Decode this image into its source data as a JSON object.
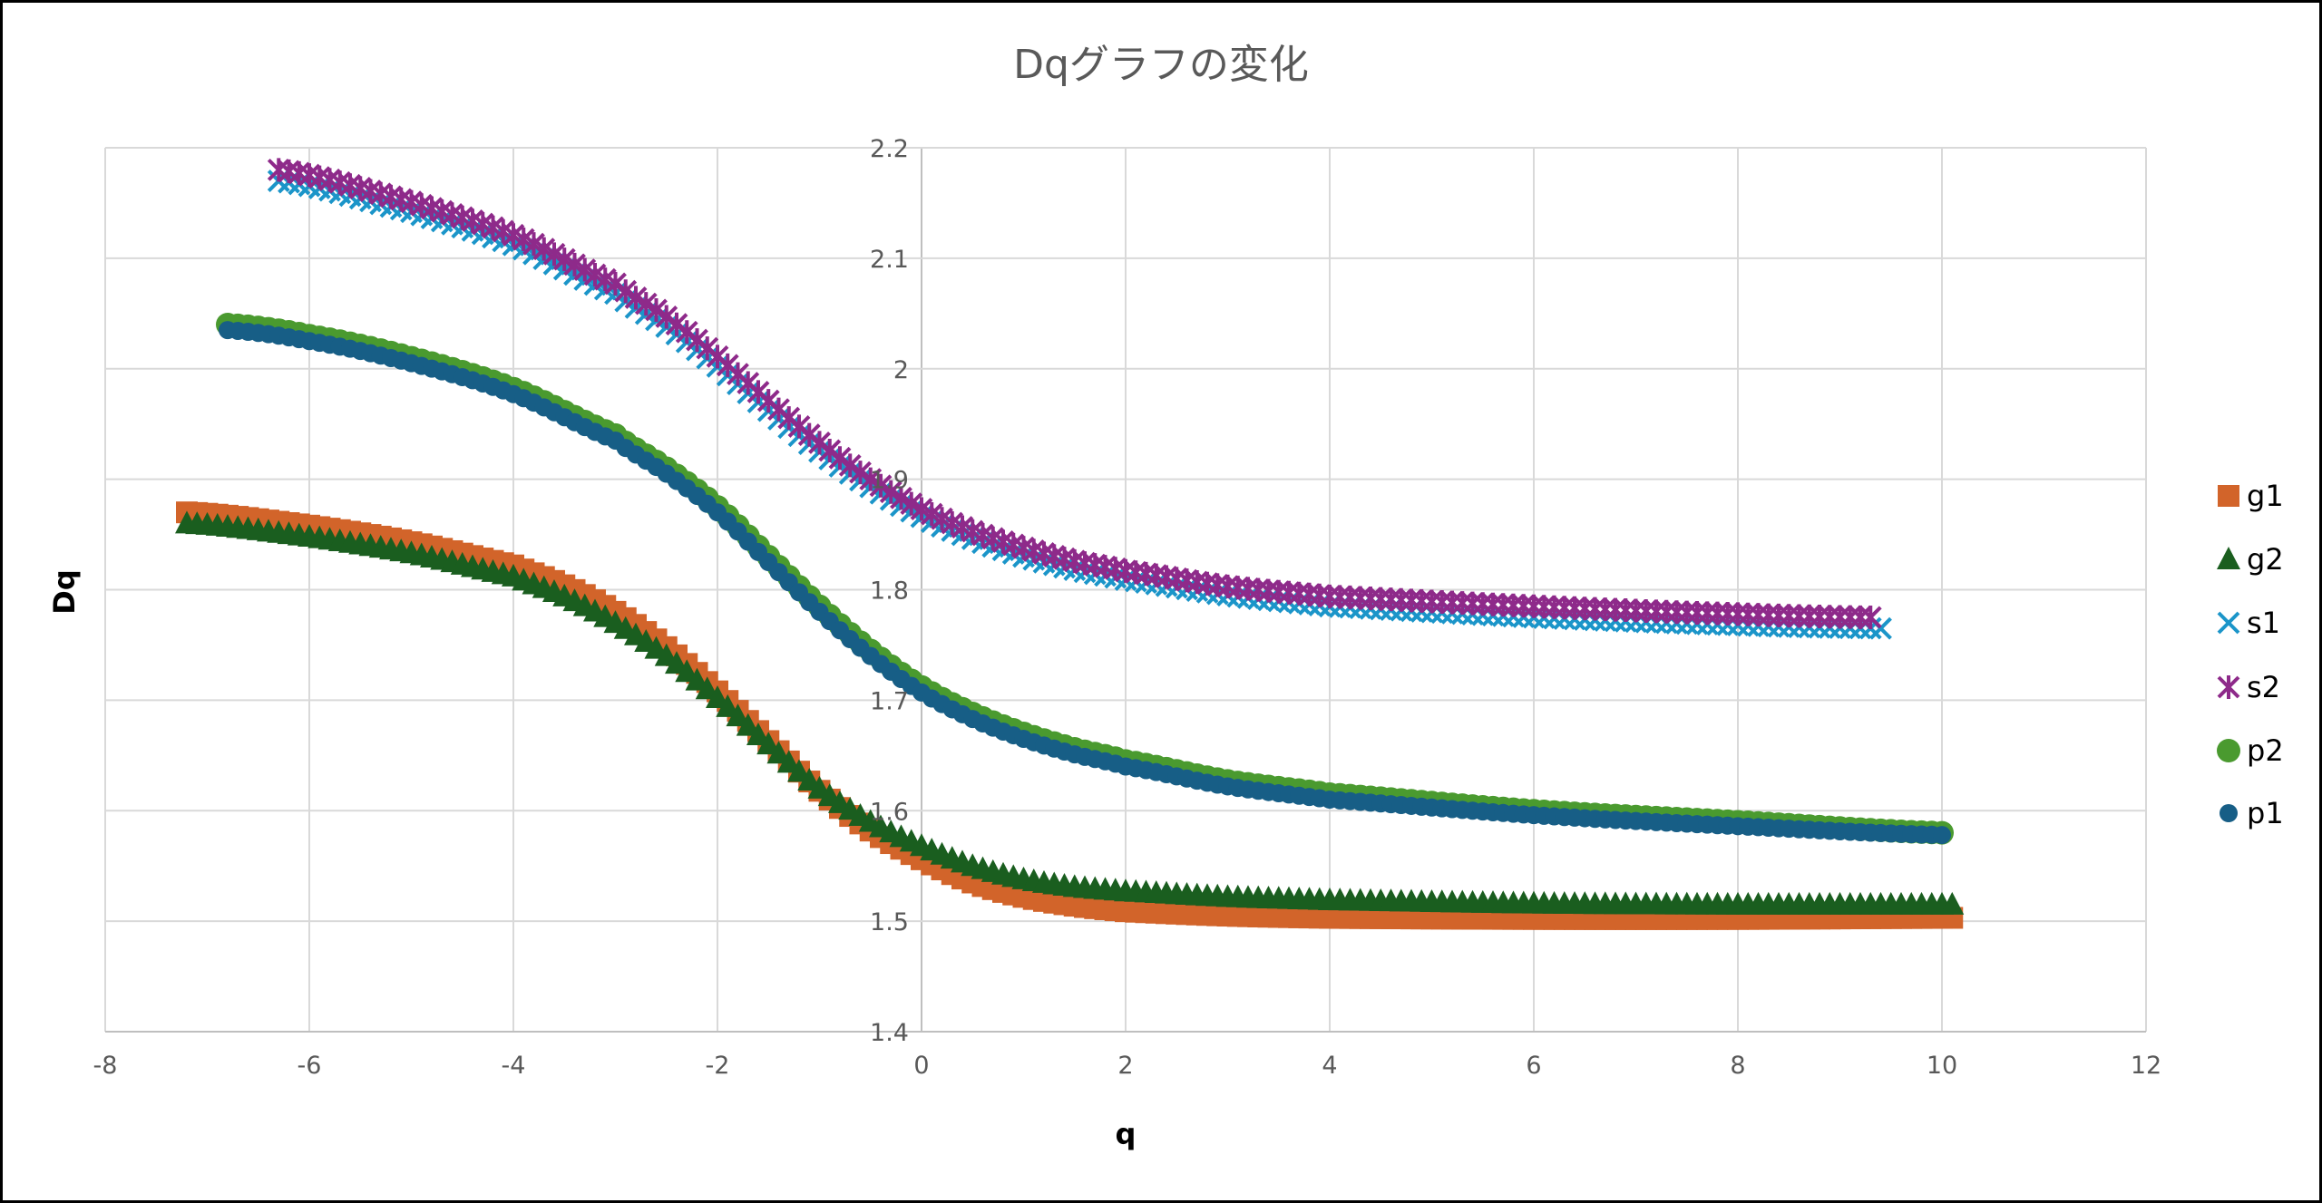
{
  "chart_data": {
    "type": "scatter",
    "title": "Dqグラフの変化",
    "xlabel": "q",
    "ylabel": "Dq",
    "xlim": [
      -8,
      12
    ],
    "ylim": [
      1.4,
      2.2
    ],
    "xticks": [
      "-8",
      "-6",
      "-4",
      "-2",
      "0",
      "2",
      "4",
      "6",
      "8",
      "10",
      "12"
    ],
    "yticks": [
      "1.4",
      "1.5",
      "1.6",
      "1.7",
      "1.8",
      "1.9",
      "2",
      "2.1",
      "2.2"
    ],
    "grid": true,
    "legend_position": "right",
    "series": [
      {
        "name": "g1",
        "marker": "square",
        "color": "#D2642A",
        "x": [
          -7.2,
          -6,
          -5,
          -4,
          -3.5,
          -3,
          -2.5,
          -2,
          -1.5,
          -1,
          -0.5,
          0,
          0.5,
          1,
          1.5,
          2,
          3,
          4,
          6,
          8,
          10.1
        ],
        "y": [
          1.87,
          1.858,
          1.843,
          1.822,
          1.804,
          1.78,
          1.748,
          1.708,
          1.663,
          1.618,
          1.582,
          1.556,
          1.535,
          1.522,
          1.514,
          1.509,
          1.505,
          1.503,
          1.502,
          1.502,
          1.503
        ]
      },
      {
        "name": "g2",
        "marker": "triangle",
        "color": "#1A5E1F",
        "x": [
          -7.2,
          -6,
          -5,
          -4,
          -3.5,
          -3,
          -2.5,
          -2,
          -1.5,
          -1,
          -0.5,
          0,
          0.5,
          1,
          1.5,
          2,
          3,
          4,
          6,
          8,
          10.1
        ],
        "y": [
          1.86,
          1.848,
          1.833,
          1.812,
          1.794,
          1.77,
          1.74,
          1.702,
          1.66,
          1.62,
          1.59,
          1.568,
          1.55,
          1.538,
          1.531,
          1.527,
          1.522,
          1.519,
          1.516,
          1.515,
          1.515
        ]
      },
      {
        "name": "s1",
        "marker": "x",
        "color": "#1B95C9",
        "x": [
          -6.3,
          -5,
          -4,
          -3,
          -2.5,
          -2,
          -1.5,
          -1,
          -0.5,
          0,
          0.5,
          1,
          1.5,
          2,
          3,
          4,
          6,
          8,
          9.4
        ],
        "y": [
          2.17,
          2.142,
          2.112,
          2.068,
          2.038,
          2.002,
          1.962,
          1.925,
          1.893,
          1.866,
          1.846,
          1.83,
          1.818,
          1.809,
          1.795,
          1.785,
          1.775,
          1.768,
          1.765
        ]
      },
      {
        "name": "s2",
        "marker": "asterisk",
        "color": "#8E2A8A",
        "x": [
          -6.3,
          -5,
          -4,
          -3,
          -2.5,
          -2,
          -1.5,
          -1,
          -0.5,
          0,
          0.5,
          1,
          1.5,
          2,
          3,
          4,
          6,
          8,
          9.3
        ],
        "y": [
          2.18,
          2.151,
          2.121,
          2.077,
          2.047,
          2.011,
          1.971,
          1.933,
          1.9,
          1.873,
          1.853,
          1.838,
          1.826,
          1.817,
          1.803,
          1.794,
          1.785,
          1.778,
          1.775
        ]
      },
      {
        "name": "p2",
        "marker": "circle",
        "color": "#4A9A2F",
        "x": [
          -6.8,
          -6,
          -5,
          -4,
          -3,
          -2.5,
          -2,
          -1.5,
          -1,
          -0.5,
          0,
          0.5,
          1,
          1.5,
          2,
          3,
          4,
          6,
          8,
          10
        ],
        "y": [
          2.04,
          2.03,
          2.01,
          1.982,
          1.94,
          1.91,
          1.875,
          1.83,
          1.785,
          1.745,
          1.712,
          1.688,
          1.67,
          1.656,
          1.645,
          1.627,
          1.615,
          1.6,
          1.59,
          1.58
        ]
      },
      {
        "name": "p1",
        "marker": "circle-small",
        "color": "#175E86",
        "x": [
          -6.8,
          -6,
          -5,
          -4,
          -3,
          -2.5,
          -2,
          -1.5,
          -1,
          -0.5,
          0,
          0.5,
          1,
          1.5,
          2,
          3,
          4,
          6,
          8,
          10
        ],
        "y": [
          2.035,
          2.025,
          2.005,
          1.977,
          1.935,
          1.905,
          1.87,
          1.825,
          1.78,
          1.74,
          1.707,
          1.683,
          1.665,
          1.651,
          1.64,
          1.622,
          1.61,
          1.596,
          1.586,
          1.578
        ]
      }
    ]
  }
}
